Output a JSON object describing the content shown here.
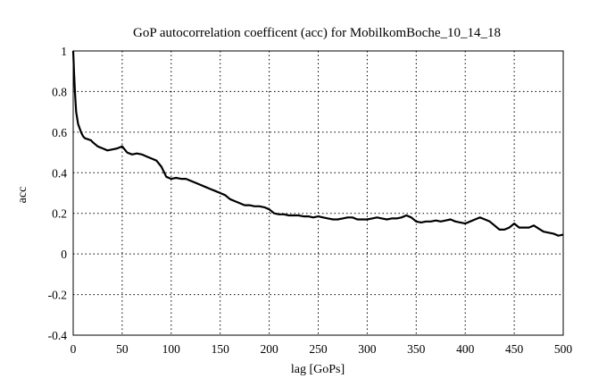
{
  "chart_data": {
    "type": "line",
    "title": "GoP autocorrelation coefficent (acc) for MobilkomBoche_10_14_18",
    "xlabel": "lag [GoPs]",
    "ylabel": "acc",
    "xlim": [
      0,
      500
    ],
    "ylim": [
      -0.4,
      1
    ],
    "grid": true,
    "x_ticks": [
      "0",
      "50",
      "100",
      "150",
      "200",
      "250",
      "300",
      "350",
      "400",
      "450",
      "500"
    ],
    "y_ticks": [
      "-0.4",
      "-0.2",
      "0",
      "0.2",
      "0.4",
      "0.6",
      "0.8",
      "1"
    ],
    "series": [
      {
        "color": "#000000",
        "x": [
          0,
          1,
          2,
          3,
          5,
          8,
          10,
          12,
          15,
          18,
          20,
          25,
          30,
          35,
          40,
          45,
          50,
          55,
          60,
          65,
          70,
          75,
          80,
          85,
          90,
          95,
          100,
          105,
          110,
          115,
          120,
          125,
          130,
          135,
          140,
          145,
          150,
          155,
          160,
          165,
          170,
          175,
          180,
          185,
          190,
          195,
          200,
          205,
          210,
          215,
          220,
          225,
          230,
          235,
          240,
          245,
          250,
          255,
          260,
          265,
          270,
          275,
          280,
          285,
          290,
          295,
          300,
          305,
          310,
          315,
          320,
          325,
          330,
          335,
          340,
          345,
          350,
          355,
          360,
          365,
          370,
          375,
          380,
          385,
          390,
          395,
          400,
          405,
          410,
          415,
          420,
          425,
          430,
          435,
          440,
          445,
          450,
          455,
          460,
          465,
          470,
          475,
          480,
          485,
          490,
          495,
          500
        ],
        "y": [
          1.0,
          0.88,
          0.78,
          0.7,
          0.64,
          0.6,
          0.58,
          0.57,
          0.565,
          0.56,
          0.55,
          0.53,
          0.52,
          0.51,
          0.515,
          0.52,
          0.53,
          0.5,
          0.49,
          0.495,
          0.49,
          0.48,
          0.47,
          0.46,
          0.43,
          0.38,
          0.37,
          0.375,
          0.37,
          0.37,
          0.36,
          0.35,
          0.34,
          0.33,
          0.32,
          0.31,
          0.3,
          0.29,
          0.27,
          0.26,
          0.25,
          0.24,
          0.24,
          0.235,
          0.235,
          0.23,
          0.22,
          0.2,
          0.195,
          0.195,
          0.19,
          0.19,
          0.19,
          0.185,
          0.185,
          0.18,
          0.185,
          0.18,
          0.175,
          0.17,
          0.17,
          0.175,
          0.18,
          0.18,
          0.17,
          0.17,
          0.17,
          0.175,
          0.18,
          0.175,
          0.17,
          0.175,
          0.175,
          0.18,
          0.19,
          0.18,
          0.16,
          0.155,
          0.16,
          0.16,
          0.165,
          0.16,
          0.165,
          0.17,
          0.16,
          0.155,
          0.15,
          0.16,
          0.17,
          0.18,
          0.17,
          0.16,
          0.14,
          0.12,
          0.12,
          0.13,
          0.15,
          0.13,
          0.13,
          0.13,
          0.14,
          0.125,
          0.11,
          0.105,
          0.1,
          0.09,
          0.095
        ]
      }
    ]
  }
}
